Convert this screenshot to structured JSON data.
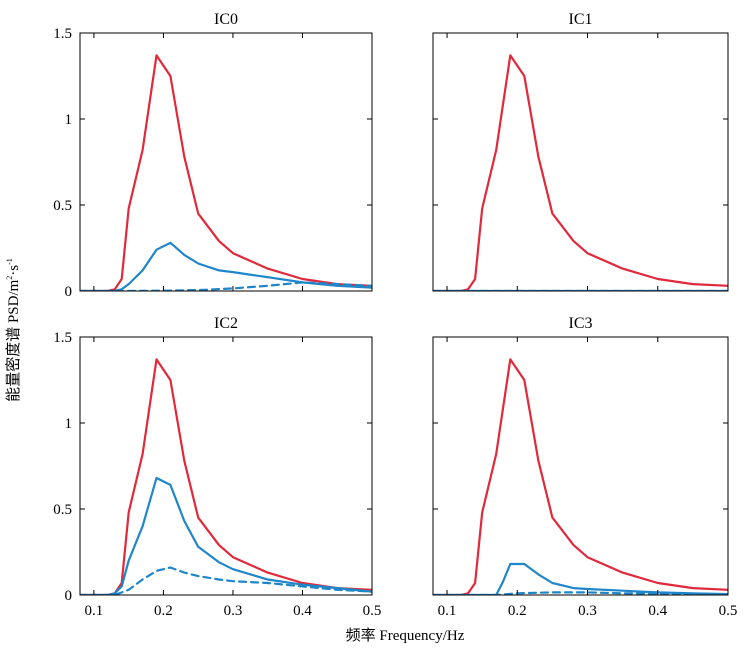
{
  "figure": {
    "xlabel": "频率 Frequency/Hz",
    "ylabel_main": "能量密度谱 PSD/m",
    "ylabel_sup1": "2",
    "ylabel_mid": "·s",
    "ylabel_sup2": "-1"
  },
  "colors": {
    "red": "#e0293a",
    "blue": "#1f86c9"
  },
  "chart_data": [
    {
      "type": "line",
      "title": "IC0",
      "xlim": [
        0.08,
        0.5
      ],
      "ylim": [
        0,
        1.5
      ],
      "xticks": [
        0.1,
        0.2,
        0.3,
        0.4,
        0.5
      ],
      "yticks": [
        0,
        0.5,
        1,
        1.5
      ],
      "xtick_labels": [
        "0.1",
        "0.2",
        "0.3",
        "0.4",
        "0.5"
      ],
      "ytick_labels": [
        "0",
        "0.5",
        "1",
        "1.5"
      ],
      "show_xtick_labels": false,
      "show_ytick_labels": true,
      "series": [
        {
          "style": "red-solid",
          "x": [
            0.08,
            0.12,
            0.13,
            0.14,
            0.15,
            0.17,
            0.19,
            0.21,
            0.23,
            0.25,
            0.28,
            0.3,
            0.35,
            0.4,
            0.45,
            0.5
          ],
          "y": [
            0,
            0,
            0.01,
            0.07,
            0.48,
            0.82,
            1.37,
            1.25,
            0.78,
            0.45,
            0.29,
            0.22,
            0.13,
            0.07,
            0.04,
            0.03
          ]
        },
        {
          "style": "blue-solid",
          "x": [
            0.08,
            0.13,
            0.14,
            0.15,
            0.17,
            0.19,
            0.21,
            0.23,
            0.25,
            0.28,
            0.3,
            0.35,
            0.4,
            0.45,
            0.5
          ],
          "y": [
            0,
            0,
            0.01,
            0.04,
            0.12,
            0.24,
            0.28,
            0.21,
            0.16,
            0.12,
            0.11,
            0.08,
            0.05,
            0.03,
            0.02
          ]
        },
        {
          "style": "blue-dashed",
          "x": [
            0.08,
            0.13,
            0.2,
            0.25,
            0.3,
            0.35,
            0.4,
            0.45,
            0.5
          ],
          "y": [
            0,
            0,
            0.002,
            0.005,
            0.015,
            0.03,
            0.05,
            0.04,
            0.03
          ]
        }
      ]
    },
    {
      "type": "line",
      "title": "IC1",
      "xlim": [
        0.08,
        0.5
      ],
      "ylim": [
        0,
        1.5
      ],
      "xticks": [
        0.1,
        0.2,
        0.3,
        0.4,
        0.5
      ],
      "yticks": [
        0,
        0.5,
        1,
        1.5
      ],
      "xtick_labels": [
        "0.1",
        "0.2",
        "0.3",
        "0.4",
        "0.5"
      ],
      "ytick_labels": [
        "0",
        "0.5",
        "1",
        "1.5"
      ],
      "show_xtick_labels": false,
      "show_ytick_labels": false,
      "series": [
        {
          "style": "red-solid",
          "x": [
            0.08,
            0.12,
            0.13,
            0.14,
            0.15,
            0.17,
            0.19,
            0.21,
            0.23,
            0.25,
            0.28,
            0.3,
            0.35,
            0.4,
            0.45,
            0.5
          ],
          "y": [
            0,
            0,
            0.01,
            0.07,
            0.48,
            0.82,
            1.37,
            1.25,
            0.78,
            0.45,
            0.29,
            0.22,
            0.13,
            0.07,
            0.04,
            0.03
          ]
        },
        {
          "style": "blue-solid",
          "x": [
            0.08,
            0.5
          ],
          "y": [
            0,
            0
          ]
        },
        {
          "style": "blue-dashed",
          "x": [
            0.08,
            0.5
          ],
          "y": [
            0,
            0
          ]
        }
      ]
    },
    {
      "type": "line",
      "title": "IC2",
      "xlim": [
        0.08,
        0.5
      ],
      "ylim": [
        0,
        1.5
      ],
      "xticks": [
        0.1,
        0.2,
        0.3,
        0.4,
        0.5
      ],
      "yticks": [
        0,
        0.5,
        1,
        1.5
      ],
      "xtick_labels": [
        "0.1",
        "0.2",
        "0.3",
        "0.4",
        "0.5"
      ],
      "ytick_labels": [
        "0",
        "0.5",
        "1",
        "1.5"
      ],
      "show_xtick_labels": true,
      "show_ytick_labels": true,
      "series": [
        {
          "style": "red-solid",
          "x": [
            0.08,
            0.12,
            0.13,
            0.14,
            0.15,
            0.17,
            0.19,
            0.21,
            0.23,
            0.25,
            0.28,
            0.3,
            0.35,
            0.4,
            0.45,
            0.5
          ],
          "y": [
            0,
            0,
            0.01,
            0.07,
            0.48,
            0.82,
            1.37,
            1.25,
            0.78,
            0.45,
            0.29,
            0.22,
            0.13,
            0.07,
            0.04,
            0.03
          ]
        },
        {
          "style": "blue-solid",
          "x": [
            0.08,
            0.12,
            0.13,
            0.14,
            0.15,
            0.17,
            0.19,
            0.21,
            0.23,
            0.25,
            0.28,
            0.3,
            0.35,
            0.4,
            0.45,
            0.5
          ],
          "y": [
            0,
            0,
            0.01,
            0.05,
            0.2,
            0.4,
            0.68,
            0.64,
            0.43,
            0.28,
            0.19,
            0.15,
            0.09,
            0.06,
            0.04,
            0.02
          ]
        },
        {
          "style": "blue-dashed",
          "x": [
            0.08,
            0.13,
            0.15,
            0.17,
            0.19,
            0.21,
            0.23,
            0.25,
            0.28,
            0.3,
            0.35,
            0.4,
            0.45,
            0.5
          ],
          "y": [
            0,
            0,
            0.03,
            0.09,
            0.14,
            0.16,
            0.13,
            0.11,
            0.09,
            0.08,
            0.07,
            0.05,
            0.03,
            0.02
          ]
        }
      ]
    },
    {
      "type": "line",
      "title": "IC3",
      "xlim": [
        0.08,
        0.5
      ],
      "ylim": [
        0,
        1.5
      ],
      "xticks": [
        0.1,
        0.2,
        0.3,
        0.4,
        0.5
      ],
      "yticks": [
        0,
        0.5,
        1,
        1.5
      ],
      "xtick_labels": [
        "0.1",
        "0.2",
        "0.3",
        "0.4",
        "0.5"
      ],
      "ytick_labels": [
        "0",
        "0.5",
        "1",
        "1.5"
      ],
      "show_xtick_labels": true,
      "show_ytick_labels": false,
      "series": [
        {
          "style": "red-solid",
          "x": [
            0.08,
            0.12,
            0.13,
            0.14,
            0.15,
            0.17,
            0.19,
            0.21,
            0.23,
            0.25,
            0.28,
            0.3,
            0.35,
            0.4,
            0.45,
            0.5
          ],
          "y": [
            0,
            0,
            0.01,
            0.07,
            0.48,
            0.82,
            1.37,
            1.25,
            0.78,
            0.45,
            0.29,
            0.22,
            0.13,
            0.07,
            0.04,
            0.03
          ]
        },
        {
          "style": "blue-solid",
          "x": [
            0.08,
            0.17,
            0.18,
            0.19,
            0.21,
            0.23,
            0.25,
            0.28,
            0.3,
            0.35,
            0.4,
            0.45,
            0.5
          ],
          "y": [
            0,
            0,
            0.08,
            0.18,
            0.18,
            0.12,
            0.07,
            0.04,
            0.035,
            0.025,
            0.015,
            0.01,
            0.005
          ]
        },
        {
          "style": "blue-dashed",
          "x": [
            0.08,
            0.17,
            0.2,
            0.25,
            0.3,
            0.35,
            0.4,
            0.45,
            0.5
          ],
          "y": [
            0,
            0,
            0.01,
            0.015,
            0.015,
            0.01,
            0.008,
            0.005,
            0.003
          ]
        }
      ]
    }
  ]
}
